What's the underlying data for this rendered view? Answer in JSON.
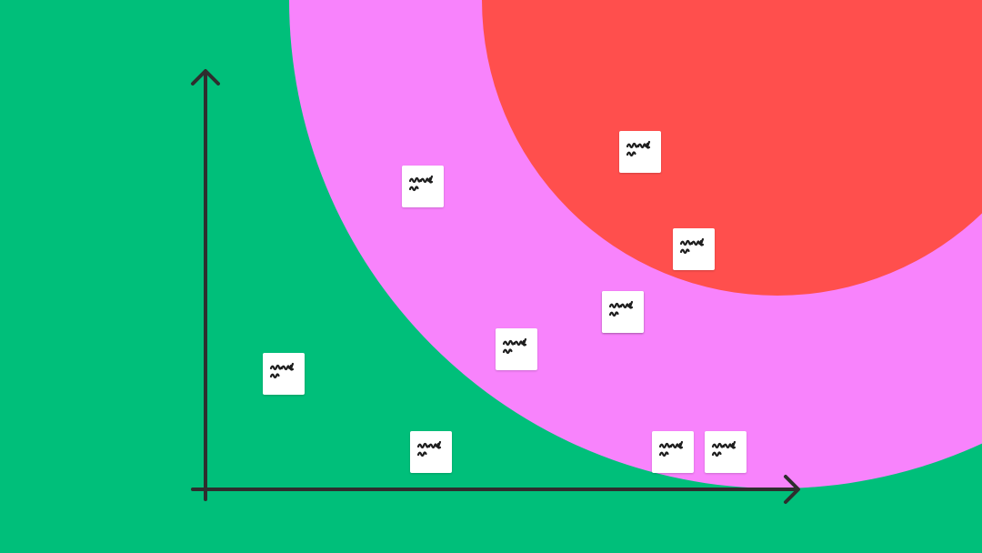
{
  "canvas": {
    "colors": {
      "background": "#00BF7A",
      "outer_zone": "#F883FC",
      "inner_zone": "#FF4F4D",
      "axis": "#2E2E2E",
      "note": "#FFFFFF",
      "scribble": "#1E1E1E"
    }
  },
  "diagram": {
    "type": "scatter-matrix",
    "axes": {
      "x_label": "",
      "y_label": "",
      "arrowheads": true
    },
    "zones": [
      {
        "id": "outer",
        "shape": "ring",
        "color": "#F883FC"
      },
      {
        "id": "inner",
        "shape": "circle",
        "color": "#FF4F4D"
      }
    ],
    "sticky_notes": [
      {
        "id": "note-1",
        "icon": "handwriting-scribble",
        "zone": "green"
      },
      {
        "id": "note-2",
        "icon": "handwriting-scribble",
        "zone": "green"
      },
      {
        "id": "note-3",
        "icon": "handwriting-scribble",
        "zone": "green"
      },
      {
        "id": "note-4",
        "icon": "handwriting-scribble",
        "zone": "green"
      },
      {
        "id": "note-5",
        "icon": "handwriting-scribble",
        "zone": "green"
      },
      {
        "id": "note-6",
        "icon": "handwriting-scribble",
        "zone": "pink"
      },
      {
        "id": "note-7",
        "icon": "handwriting-scribble",
        "zone": "pink"
      },
      {
        "id": "note-8",
        "icon": "handwriting-scribble",
        "zone": "pink"
      },
      {
        "id": "note-9",
        "icon": "handwriting-scribble",
        "zone": "pink"
      },
      {
        "id": "note-10",
        "icon": "handwriting-scribble",
        "zone": "red"
      }
    ]
  }
}
